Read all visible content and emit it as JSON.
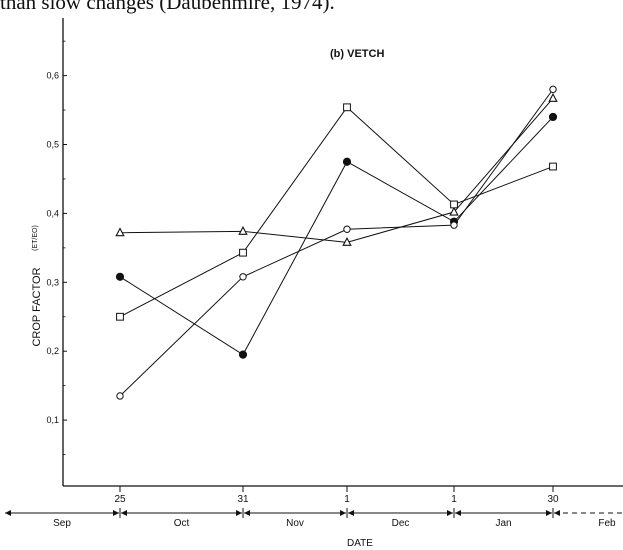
{
  "caption_fragment": "than slow changes (Daubenmire, 1974).",
  "chart_data": {
    "type": "line",
    "title": "(b)  VETCH",
    "xlabel": "DATE",
    "ylabel": "CROP  FACTOR",
    "ylabel_sub": "(ET/EO)",
    "ylim": [
      0,
      0.65
    ],
    "yticks": [
      0.1,
      0.2,
      0.3,
      0.4,
      0.5,
      0.6
    ],
    "ytick_labels": [
      "0,1",
      "0,2",
      "0,3",
      "0,4",
      "0,5",
      "0,6"
    ],
    "x": [
      "25 Sep",
      "31 Oct",
      "1 Dec",
      "1 Jan",
      "30 Jan"
    ],
    "xtick_labels": [
      "25",
      "31",
      "1",
      "1",
      "30"
    ],
    "months": [
      "Sep",
      "Oct",
      "Nov",
      "Dec",
      "Jan",
      "Feb"
    ],
    "grid": false,
    "legend": "none",
    "series": [
      {
        "marker": "triangle-open",
        "values": [
          0.372,
          0.374,
          0.358,
          0.402,
          0.567
        ]
      },
      {
        "marker": "square-open",
        "values": [
          0.25,
          0.343,
          0.554,
          0.413,
          0.468
        ]
      },
      {
        "marker": "circle-filled",
        "values": [
          0.308,
          0.195,
          0.475,
          0.388,
          0.54
        ]
      },
      {
        "marker": "circle-open",
        "values": [
          0.135,
          0.308,
          0.377,
          0.383,
          0.58
        ]
      }
    ]
  }
}
